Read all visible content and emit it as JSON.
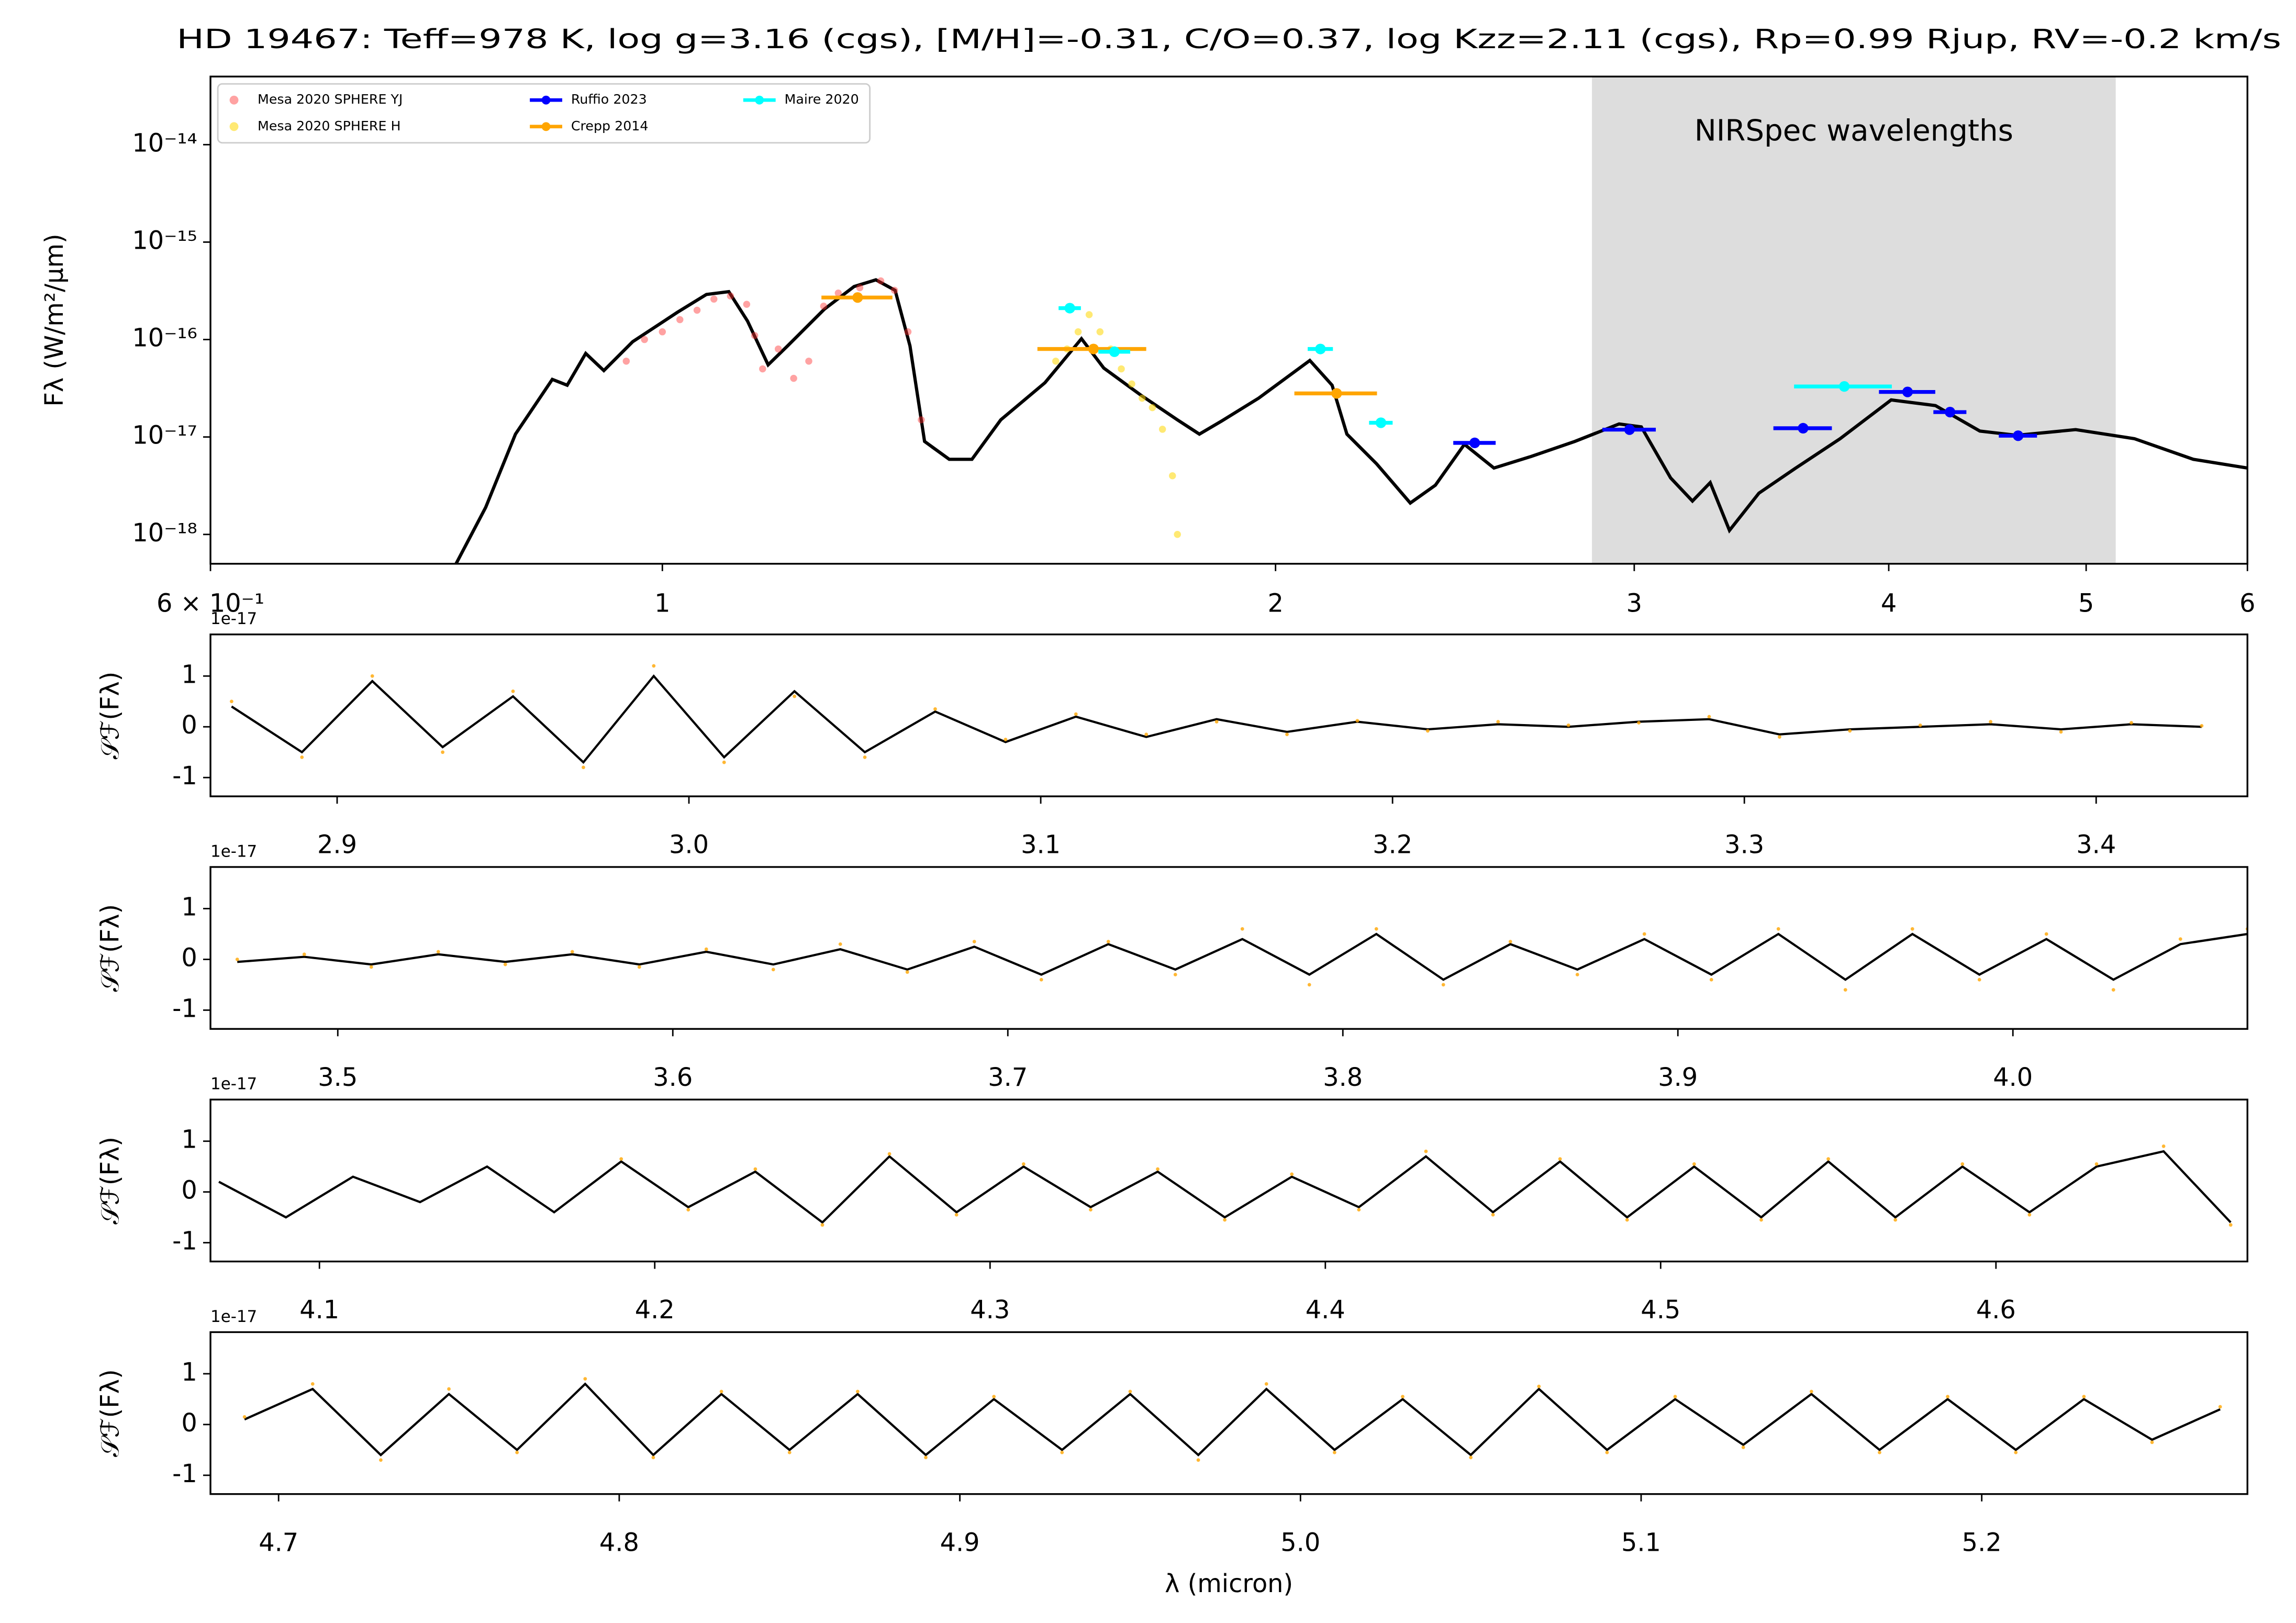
{
  "chart_data": [
    {
      "type": "line",
      "title": "HD 19467: Teff=978 K, log g=3.16 (cgs), [M/H]=-0.31, C/O=0.37, log Kzz=2.11 (cgs), Rp=0.99 Rjup, RV=-0.2 km/s",
      "ylabel": "Fλ (W/m²/μm)",
      "xscale": "log",
      "yscale": "log",
      "xlim": [
        0.6,
        6
      ],
      "ylim": [
        5e-19,
        5e-14
      ],
      "xticks": [
        {
          "value": 0.6,
          "label": "6 × 10⁻¹"
        },
        1,
        2,
        3,
        4,
        5,
        6
      ],
      "yticks": [
        {
          "value": 1e-18,
          "label": "10⁻¹⁸"
        },
        {
          "value": 1e-17,
          "label": "10⁻¹⁷"
        },
        {
          "value": 1e-16,
          "label": "10⁻¹⁶"
        },
        {
          "value": 1e-15,
          "label": "10⁻¹⁵"
        },
        {
          "value": 1e-14,
          "label": "10⁻¹⁴"
        }
      ],
      "shaded_span": [
        2.86,
        5.17
      ],
      "span_color": "#dddddd",
      "annotation": "NIRSpec wavelengths",
      "legend": "upper left",
      "legend_ncol": 3,
      "series": [
        {
          "style": "line",
          "color": "#000000",
          "x": [
            0.792,
            0.819,
            0.847,
            0.883,
            0.898,
            0.917,
            0.936,
            0.967,
            1.017,
            1.051,
            1.078,
            1.101,
            1.127,
            1.152,
            1.201,
            1.242,
            1.273,
            1.301,
            1.323,
            1.345,
            1.383,
            1.419,
            1.466,
            1.541,
            1.606,
            1.647,
            1.717,
            1.79,
            1.835,
            1.882,
            1.962,
            2.079,
            2.132,
            2.168,
            2.242,
            2.329,
            2.396,
            2.476,
            2.56,
            2.669,
            2.805,
            2.949,
            3.024,
            3.126,
            3.204,
            3.269,
            3.341,
            3.454,
            3.601,
            3.786,
            4.011,
            4.217,
            4.434,
            4.623,
            4.941,
            5.281,
            5.644,
            6.0
          ],
          "values": [
            5e-19,
            1.9e-18,
            1.07e-17,
            3.9e-17,
            3.4e-17,
            7.2e-17,
            4.8e-17,
            9.5e-17,
            1.9e-16,
            2.9e-16,
            3.1e-16,
            1.55e-16,
            5.5e-17,
            8.6e-17,
            2.05e-16,
            3.5e-16,
            4.1e-16,
            3.2e-16,
            8.6e-17,
            9e-18,
            5.9e-18,
            5.9e-18,
            1.5e-17,
            3.6e-17,
            1.02e-16,
            5.1e-17,
            2.7e-17,
            1.5e-17,
            1.07e-17,
            1.46e-17,
            2.5e-17,
            6.1e-17,
            3.4e-17,
            1.07e-17,
            5.3e-18,
            2.1e-18,
            3.2e-18,
            8.4e-18,
            4.8e-18,
            6.3e-18,
            9e-18,
            1.36e-17,
            1.27e-17,
            3.8e-18,
            2.2e-18,
            3.4e-18,
            1.1e-18,
            2.65e-18,
            4.8e-18,
            9.6e-18,
            2.4e-17,
            2.1e-17,
            1.15e-17,
            1.04e-17,
            1.19e-17,
            9.6e-18,
            5.9e-18,
            4.8e-18
          ]
        },
        {
          "name": "Mesa 2020 SPHERE YJ",
          "style": "scatter",
          "color": "#ff3030",
          "alpha": 0.45,
          "x": [
            0.96,
            0.98,
            1.0,
            1.02,
            1.04,
            1.06,
            1.08,
            1.1,
            1.11,
            1.12,
            1.14,
            1.16,
            1.18,
            1.2,
            1.22,
            1.25,
            1.28,
            1.3,
            1.32,
            1.34
          ],
          "values": [
            6e-17,
            1e-16,
            1.2e-16,
            1.6e-16,
            2e-16,
            2.6e-16,
            2.8e-16,
            2.3e-16,
            1.1e-16,
            5e-17,
            8e-17,
            4e-17,
            6e-17,
            2.2e-16,
            3e-16,
            3.4e-16,
            4e-16,
            3.2e-16,
            1.2e-16,
            1.5e-17
          ]
        },
        {
          "name": "Mesa 2020 SPHERE H",
          "style": "scatter",
          "color": "#ffd700",
          "alpha": 0.55,
          "x": [
            1.56,
            1.58,
            1.6,
            1.62,
            1.64,
            1.66,
            1.68,
            1.7,
            1.72,
            1.74,
            1.76,
            1.78,
            1.79
          ],
          "values": [
            6e-17,
            8e-17,
            1.2e-16,
            1.8e-16,
            1.2e-16,
            8e-17,
            5e-17,
            3.5e-17,
            2.5e-17,
            2e-17,
            1.2e-17,
            4e-18,
            1e-18
          ]
        },
        {
          "name": "Ruffio 2023",
          "style": "errorbar",
          "color": "#0000ff",
          "x": [
            2.505,
            2.984,
            3.631,
            4.086,
            4.287,
            4.63
          ],
          "xerr": [
            0.06,
            0.09,
            0.12,
            0.13,
            0.08,
            0.1
          ],
          "values": [
            8.7e-18,
            1.19e-17,
            1.23e-17,
            2.9e-17,
            1.8e-17,
            1.03e-17
          ]
        },
        {
          "name": "Crepp 2014",
          "style": "errorbar",
          "color": "#ffa500",
          "x": [
            1.247,
            1.628,
            2.143
          ],
          "xerr": [
            0.05,
            0.1,
            0.1
          ],
          "values": [
            2.7e-16,
            8e-17,
            2.8e-17
          ]
        },
        {
          "name": "Maire 2020",
          "style": "errorbar",
          "color": "#00ffff",
          "x": [
            1.585,
            1.667,
            2.104,
            2.253,
            3.804
          ],
          "xerr": [
            0.02,
            0.03,
            0.03,
            0.03,
            0.21
          ],
          "values": [
            2.1e-16,
            7.5e-17,
            8e-17,
            1.4e-17,
            3.3e-17
          ]
        }
      ]
    },
    {
      "type": "line",
      "ylabel": "𝒮ℱ(Fλ)",
      "offset_label": "1e-17",
      "xlim": [
        2.864,
        3.443
      ],
      "ylim": [
        -1.37,
        1.82
      ],
      "xticks": [
        2.9,
        {
          "value": 3,
          "label": "3.0"
        },
        3.1,
        3.2,
        3.3,
        3.4
      ],
      "yticks": [
        -1,
        0,
        1
      ],
      "series": [
        {
          "style": "line",
          "color": "#000000",
          "x": [
            2.87,
            2.89,
            2.91,
            2.93,
            2.95,
            2.97,
            2.99,
            3.01,
            3.03,
            3.05,
            3.07,
            3.09,
            3.11,
            3.13,
            3.15,
            3.17,
            3.19,
            3.21,
            3.23,
            3.25,
            3.27,
            3.29,
            3.31,
            3.33,
            3.35,
            3.37,
            3.39,
            3.41,
            3.43
          ],
          "values": [
            0.4,
            -0.5,
            0.9,
            -0.4,
            0.6,
            -0.7,
            1.0,
            -0.6,
            0.7,
            -0.5,
            0.3,
            -0.3,
            0.2,
            -0.2,
            0.15,
            -0.1,
            0.1,
            -0.05,
            0.05,
            0.0,
            0.1,
            0.15,
            -0.15,
            -0.05,
            0.0,
            0.05,
            -0.05,
            0.05,
            0.0
          ]
        },
        {
          "style": "scatter",
          "color": "#ffa500",
          "alpha": 0.8,
          "x": [
            2.87,
            2.89,
            2.91,
            2.93,
            2.95,
            2.97,
            2.99,
            3.01,
            3.03,
            3.05,
            3.07,
            3.09,
            3.11,
            3.13,
            3.15,
            3.17,
            3.19,
            3.21,
            3.23,
            3.25,
            3.27,
            3.29,
            3.31,
            3.33,
            3.35,
            3.37,
            3.39,
            3.41,
            3.43
          ],
          "values": [
            0.5,
            -0.6,
            1.0,
            -0.5,
            0.7,
            -0.8,
            1.2,
            -0.7,
            0.6,
            -0.6,
            0.35,
            -0.25,
            0.25,
            -0.15,
            0.1,
            -0.15,
            0.12,
            -0.08,
            0.1,
            0.03,
            0.08,
            0.2,
            -0.2,
            -0.08,
            0.03,
            0.1,
            -0.1,
            0.08,
            0.02
          ]
        }
      ]
    },
    {
      "type": "line",
      "ylabel": "𝒮ℱ(Fλ)",
      "offset_label": "1e-17",
      "xlim": [
        3.462,
        4.07
      ],
      "ylim": [
        -1.37,
        1.82
      ],
      "xticks": [
        3.5,
        3.6,
        3.7,
        3.8,
        3.9,
        {
          "value": 4,
          "label": "4.0"
        }
      ],
      "yticks": [
        -1,
        0,
        1
      ],
      "series": [
        {
          "style": "line",
          "color": "#000000",
          "x": [
            3.47,
            3.49,
            3.51,
            3.53,
            3.55,
            3.57,
            3.59,
            3.61,
            3.63,
            3.65,
            3.67,
            3.69,
            3.71,
            3.73,
            3.75,
            3.77,
            3.79,
            3.81,
            3.83,
            3.85,
            3.87,
            3.89,
            3.91,
            3.93,
            3.95,
            3.97,
            3.99,
            4.01,
            4.03,
            4.05,
            4.07
          ],
          "values": [
            -0.05,
            0.05,
            -0.1,
            0.1,
            -0.05,
            0.1,
            -0.1,
            0.15,
            -0.1,
            0.2,
            -0.2,
            0.25,
            -0.3,
            0.3,
            -0.2,
            0.4,
            -0.3,
            0.5,
            -0.4,
            0.3,
            -0.2,
            0.4,
            -0.3,
            0.5,
            -0.4,
            0.5,
            -0.3,
            0.4,
            -0.4,
            0.3,
            0.5
          ]
        },
        {
          "style": "scatter",
          "color": "#ffa500",
          "alpha": 0.8,
          "x": [
            3.47,
            3.49,
            3.51,
            3.53,
            3.55,
            3.57,
            3.59,
            3.61,
            3.63,
            3.65,
            3.67,
            3.69,
            3.71,
            3.73,
            3.75,
            3.77,
            3.79,
            3.81,
            3.83,
            3.85,
            3.87,
            3.89,
            3.91,
            3.93,
            3.95,
            3.97,
            3.99,
            4.01,
            4.03,
            4.05,
            4.07
          ],
          "values": [
            0.0,
            0.1,
            -0.15,
            0.15,
            -0.1,
            0.15,
            -0.15,
            0.2,
            -0.2,
            0.3,
            -0.25,
            0.35,
            -0.4,
            0.35,
            -0.3,
            0.6,
            -0.5,
            0.6,
            -0.5,
            0.35,
            -0.3,
            0.5,
            -0.4,
            0.6,
            -0.6,
            0.6,
            -0.4,
            0.5,
            -0.6,
            0.4,
            0.6
          ]
        }
      ]
    },
    {
      "type": "line",
      "ylabel": "𝒮ℱ(Fλ)",
      "offset_label": "1e-17",
      "xlim": [
        4.0675,
        4.675
      ],
      "ylim": [
        -1.37,
        1.82
      ],
      "xticks": [
        4.1,
        4.2,
        4.3,
        4.4,
        4.5,
        4.6
      ],
      "yticks": [
        -1,
        0,
        1
      ],
      "series": [
        {
          "style": "line",
          "color": "#000000",
          "x": [
            4.07,
            4.09,
            4.11,
            4.13,
            4.15,
            4.17,
            4.19,
            4.21,
            4.23,
            4.25,
            4.27,
            4.29,
            4.31,
            4.33,
            4.35,
            4.37,
            4.39,
            4.41,
            4.43,
            4.45,
            4.47,
            4.49,
            4.51,
            4.53,
            4.55,
            4.57,
            4.59,
            4.61,
            4.63,
            4.65,
            4.67
          ],
          "values": [
            0.2,
            -0.5,
            0.3,
            -0.2,
            0.5,
            -0.4,
            0.6,
            -0.3,
            0.4,
            -0.6,
            0.7,
            -0.4,
            0.5,
            -0.3,
            0.4,
            -0.5,
            0.3,
            -0.3,
            0.7,
            -0.4,
            0.6,
            -0.5,
            0.5,
            -0.5,
            0.6,
            -0.5,
            0.5,
            -0.4,
            0.5,
            0.8,
            -0.6
          ]
        },
        {
          "style": "scatter",
          "color": "#ffa500",
          "alpha": 0.8,
          "x": [
            4.07,
            4.09,
            4.11,
            4.13,
            4.15,
            4.17,
            4.19,
            4.21,
            4.23,
            4.25,
            4.27,
            4.29,
            4.31,
            4.33,
            4.35,
            4.37,
            4.39,
            4.41,
            4.43,
            4.45,
            4.47,
            4.49,
            4.51,
            4.53,
            4.55,
            4.57,
            4.59,
            4.61,
            4.63,
            4.65,
            4.67
          ],
          "values": [
            null,
            null,
            null,
            null,
            null,
            null,
            0.65,
            -0.35,
            0.45,
            -0.65,
            0.75,
            -0.45,
            0.55,
            -0.35,
            0.45,
            -0.55,
            0.35,
            -0.35,
            0.8,
            -0.45,
            0.65,
            -0.55,
            0.55,
            -0.55,
            0.65,
            -0.55,
            0.55,
            -0.45,
            0.55,
            0.9,
            -0.65
          ]
        }
      ]
    },
    {
      "type": "line",
      "ylabel": "𝒮ℱ(Fλ)",
      "offset_label": "1e-17",
      "xlabel": "λ (micron)",
      "xlim": [
        4.68,
        5.278
      ],
      "ylim": [
        -1.37,
        1.82
      ],
      "xticks": [
        4.7,
        4.8,
        4.9,
        {
          "value": 5,
          "label": "5.0"
        },
        5.1,
        5.2
      ],
      "yticks": [
        -1,
        0,
        1
      ],
      "series": [
        {
          "style": "line",
          "color": "#000000",
          "x": [
            4.69,
            4.71,
            4.73,
            4.75,
            4.77,
            4.79,
            4.81,
            4.83,
            4.85,
            4.87,
            4.89,
            4.91,
            4.93,
            4.95,
            4.97,
            4.99,
            5.01,
            5.03,
            5.05,
            5.07,
            5.09,
            5.11,
            5.13,
            5.15,
            5.17,
            5.19,
            5.21,
            5.23,
            5.25,
            5.27
          ],
          "values": [
            0.1,
            0.7,
            -0.6,
            0.6,
            -0.5,
            0.8,
            -0.6,
            0.6,
            -0.5,
            0.6,
            -0.6,
            0.5,
            -0.5,
            0.6,
            -0.6,
            0.7,
            -0.5,
            0.5,
            -0.6,
            0.7,
            -0.5,
            0.5,
            -0.4,
            0.6,
            -0.5,
            0.5,
            -0.5,
            0.5,
            -0.3,
            0.3
          ]
        },
        {
          "style": "scatter",
          "color": "#ffa500",
          "alpha": 0.8,
          "x": [
            4.69,
            4.71,
            4.73,
            4.75,
            4.77,
            4.79,
            4.81,
            4.83,
            4.85,
            4.87,
            4.89,
            4.91,
            4.93,
            4.95,
            4.97,
            4.99,
            5.01,
            5.03,
            5.05,
            5.07,
            5.09,
            5.11,
            5.13,
            5.15,
            5.17,
            5.19,
            5.21,
            5.23,
            5.25,
            5.27
          ],
          "values": [
            0.15,
            0.8,
            -0.7,
            0.7,
            -0.55,
            0.9,
            -0.65,
            0.65,
            -0.55,
            0.65,
            -0.65,
            0.55,
            -0.55,
            0.65,
            -0.7,
            0.8,
            -0.55,
            0.55,
            -0.65,
            0.75,
            -0.55,
            0.55,
            -0.45,
            0.65,
            -0.55,
            0.55,
            -0.55,
            0.55,
            -0.35,
            0.35
          ]
        }
      ]
    }
  ]
}
